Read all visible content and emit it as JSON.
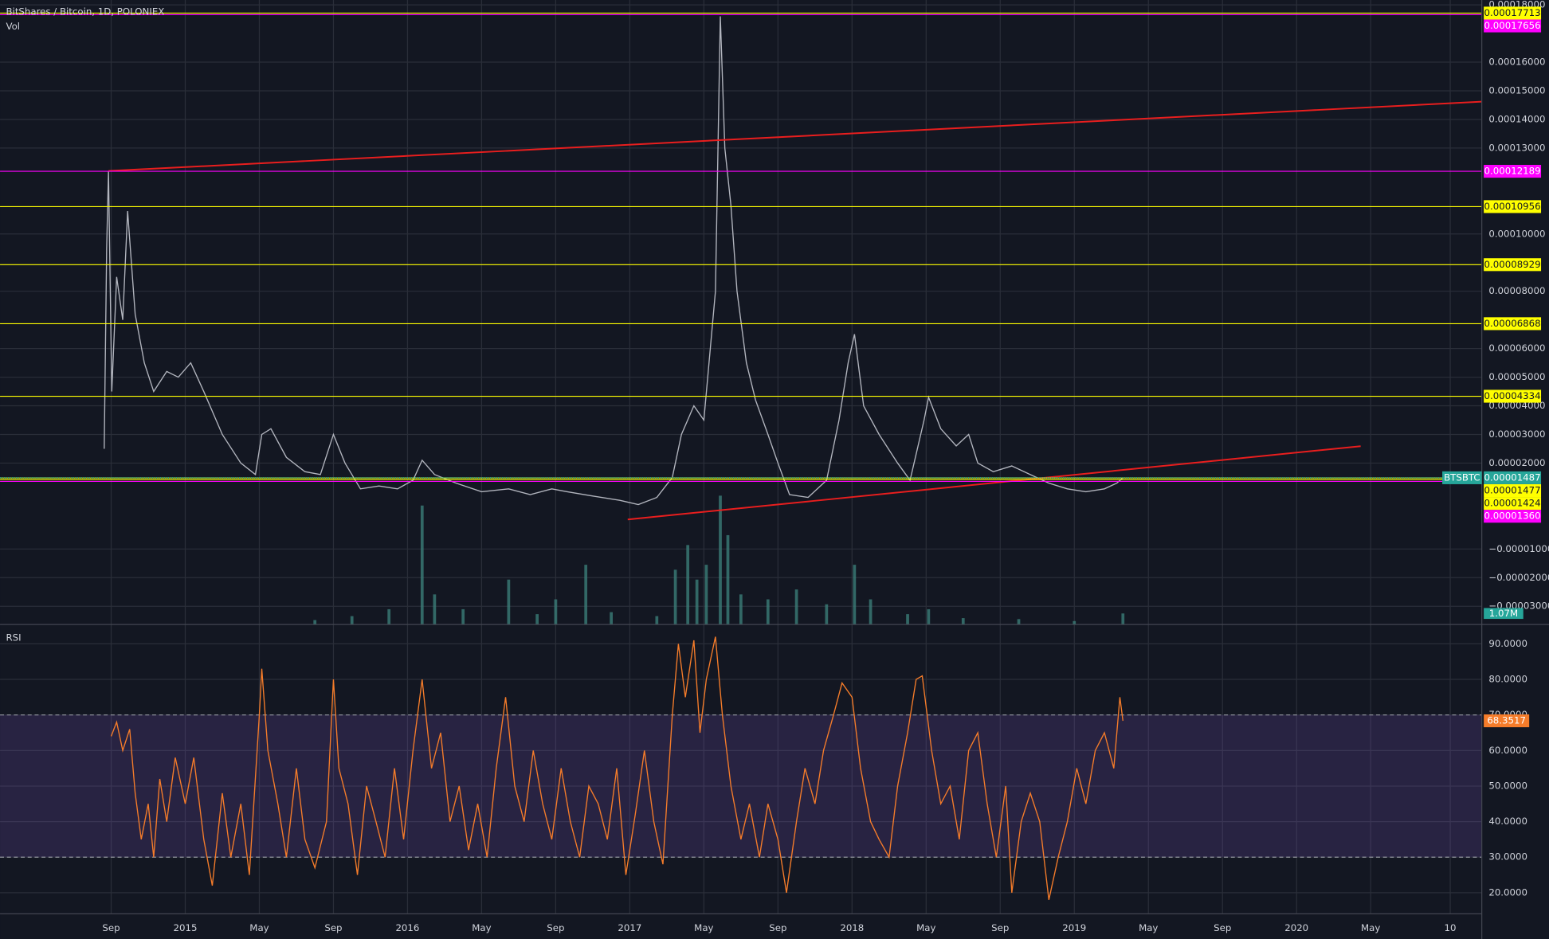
{
  "chart_data": [
    {
      "type": "line",
      "title": "BitShares / Bitcoin, 1D, POLONIEX",
      "xlim": [
        "2014-03",
        "2020-11"
      ],
      "xticks": [
        {
          "value": "2014-09",
          "label": "Sep"
        },
        {
          "value": "2015-01",
          "label": "2015"
        },
        {
          "value": "2015-05",
          "label": "May"
        },
        {
          "value": "2015-09",
          "label": "Sep"
        },
        {
          "value": "2016-01",
          "label": "2016"
        },
        {
          "value": "2016-05",
          "label": "May"
        },
        {
          "value": "2016-09",
          "label": "Sep"
        },
        {
          "value": "2017-01",
          "label": "2017"
        },
        {
          "value": "2017-05",
          "label": "May"
        },
        {
          "value": "2017-09",
          "label": "Sep"
        },
        {
          "value": "2018-01",
          "label": "2018"
        },
        {
          "value": "2018-05",
          "label": "May"
        },
        {
          "value": "2018-09",
          "label": "Sep"
        },
        {
          "value": "2019-01",
          "label": "2019"
        },
        {
          "value": "2019-05",
          "label": "May"
        },
        {
          "value": "2019-09",
          "label": "Sep"
        },
        {
          "value": "2020-01",
          "label": "2020"
        },
        {
          "value": "2020-05",
          "label": "May"
        },
        {
          "value": "2020-09-10",
          "label": "10"
        }
      ],
      "ylim": [
        -3.62e-05,
        0.0001817
      ],
      "yticks": [
        {
          "value": 0.00018,
          "label": "0.00018000"
        },
        {
          "value": 0.00016,
          "label": "0.00016000"
        },
        {
          "value": 0.00015,
          "label": "0.00015000"
        },
        {
          "value": 0.00014,
          "label": "0.00014000"
        },
        {
          "value": 0.00013,
          "label": "0.00013000"
        },
        {
          "value": 0.0001,
          "label": "0.00010000"
        },
        {
          "value": 8e-05,
          "label": "0.00008000"
        },
        {
          "value": 6e-05,
          "label": "0.00006000"
        },
        {
          "value": 5e-05,
          "label": "0.00005000"
        },
        {
          "value": 4e-05,
          "label": "0.00004000"
        },
        {
          "value": 3e-05,
          "label": "0.00003000"
        },
        {
          "value": 2e-05,
          "label": "0.00002000"
        },
        {
          "value": -1e-05,
          "label": "−0.00001000"
        },
        {
          "value": -2e-05,
          "label": "−0.00002000"
        },
        {
          "value": -3e-05,
          "label": "−0.00003000"
        }
      ],
      "grid": true,
      "x": [
        "2014-08-20",
        "2014-08-24",
        "2014-08-27",
        "2014-09-02",
        "2014-09-10",
        "2014-09-20",
        "2014-09-28",
        "2014-10-10",
        "2014-10-25",
        "2014-11-10",
        "2014-12-01",
        "2014-12-20",
        "2015-01-10",
        "2015-02-01",
        "2015-03-01",
        "2015-04-01",
        "2015-04-25",
        "2015-05-05",
        "2015-05-20",
        "2015-06-15",
        "2015-07-15",
        "2015-08-10",
        "2015-09-01",
        "2015-09-20",
        "2015-10-15",
        "2015-11-15",
        "2015-12-15",
        "2016-01-10",
        "2016-01-25",
        "2016-02-15",
        "2016-03-20",
        "2016-05-01",
        "2016-06-15",
        "2016-07-20",
        "2016-08-25",
        "2016-09-20",
        "2016-11-01",
        "2016-12-15",
        "2017-01-15",
        "2017-02-15",
        "2017-03-10",
        "2017-03-25",
        "2017-04-15",
        "2017-05-01",
        "2017-05-20",
        "2017-05-28",
        "2017-06-05",
        "2017-06-15",
        "2017-06-25",
        "2017-07-10",
        "2017-07-25",
        "2017-08-15",
        "2017-09-01",
        "2017-09-20",
        "2017-10-20",
        "2017-11-20",
        "2017-12-10",
        "2017-12-25",
        "2018-01-05",
        "2018-01-20",
        "2018-02-15",
        "2018-03-15",
        "2018-04-05",
        "2018-04-28",
        "2018-05-05",
        "2018-05-25",
        "2018-06-20",
        "2018-07-10",
        "2018-07-25",
        "2018-08-20",
        "2018-09-20",
        "2018-10-20",
        "2018-11-20",
        "2018-12-20",
        "2019-01-20",
        "2019-02-20",
        "2019-03-10",
        "2019-03-20"
      ],
      "series": [
        {
          "name": "BTSBTC",
          "color": "#b2b5be",
          "values": [
            2.5e-05,
            9.5e-05,
            0.000122,
            4.5e-05,
            8.5e-05,
            7e-05,
            0.000108,
            7.2e-05,
            5.5e-05,
            4.5e-05,
            5.2e-05,
            5e-05,
            5.5e-05,
            4.5e-05,
            3e-05,
            2e-05,
            1.6e-05,
            3e-05,
            3.2e-05,
            2.2e-05,
            1.7e-05,
            1.6e-05,
            3e-05,
            2e-05,
            1.1e-05,
            1.2e-05,
            1.1e-05,
            1.4e-05,
            2.1e-05,
            1.6e-05,
            1.3e-05,
            1e-05,
            1.1e-05,
            9e-06,
            1.1e-05,
            1e-05,
            8.5e-06,
            7e-06,
            5.5e-06,
            8e-06,
            1.5e-05,
            3e-05,
            4e-05,
            3.5e-05,
            8e-05,
            0.000176,
            0.00013,
            0.00011,
            8e-05,
            5.5e-05,
            4.2e-05,
            3e-05,
            2e-05,
            9e-06,
            8e-06,
            1.4e-05,
            3.5e-05,
            5.5e-05,
            6.5e-05,
            4e-05,
            3e-05,
            2e-05,
            1.4e-05,
            3.5e-05,
            4.3e-05,
            3.2e-05,
            2.6e-05,
            3e-05,
            2e-05,
            1.7e-05,
            1.9e-05,
            1.6e-05,
            1.3e-05,
            1.1e-05,
            1e-05,
            1.1e-05,
            1.3e-05,
            1.487e-05
          ]
        }
      ],
      "last_color": "#26a69a",
      "levels": [
        {
          "value": 0.00017713,
          "label": "0.00017713",
          "color": "#ffff00"
        },
        {
          "value": 0.00017656,
          "label": "0.00017656",
          "color": "#ff00ff"
        },
        {
          "value": 0.00012189,
          "label": "0.00012189",
          "color": "#ff00ff"
        },
        {
          "value": 0.00010956,
          "label": "0.00010956",
          "color": "#ffff00"
        },
        {
          "value": 8.929e-05,
          "label": "0.00008929",
          "color": "#ffff00"
        },
        {
          "value": 6.868e-05,
          "label": "0.00006868",
          "color": "#ffff00"
        },
        {
          "value": 4.334e-05,
          "label": "0.00004334",
          "color": "#ffff00"
        },
        {
          "value": 1.477e-05,
          "label": "0.00001477",
          "color": "#ffff00"
        },
        {
          "value": 1.424e-05,
          "label": "0.00001424",
          "color": "#ffff00"
        },
        {
          "value": 1.36e-05,
          "label": "0.00001360",
          "color": "#ff00ff"
        }
      ],
      "trendlines": [
        {
          "x": [
            "2014-08-27",
            "2020-11"
          ],
          "values": [
            0.000122,
            0.0001462
          ],
          "color": "#e91e1e"
        },
        {
          "x": [
            "2016-12-28",
            "2020-04-15"
          ],
          "values": [
            3e-07,
            2.59e-05
          ],
          "color": "#e91e1e"
        }
      ]
    },
    {
      "type": "bar",
      "title": "Vol",
      "color": "#3b7d78",
      "label_color": "#26a69a",
      "ylim": [
        0,
        20000000
      ],
      "x": [
        "2015-08-01",
        "2015-10-01",
        "2015-12-01",
        "2016-01-25",
        "2016-02-15",
        "2016-04-01",
        "2016-06-15",
        "2016-08-01",
        "2016-09-01",
        "2016-10-20",
        "2016-12-01",
        "2017-02-15",
        "2017-03-15",
        "2017-04-05",
        "2017-04-20",
        "2017-05-05",
        "2017-05-28",
        "2017-06-10",
        "2017-07-01",
        "2017-08-15",
        "2017-10-01",
        "2017-11-20",
        "2018-01-05",
        "2018-02-01",
        "2018-04-01",
        "2018-05-05",
        "2018-07-01",
        "2018-10-01",
        "2019-01-01",
        "2019-03-20"
      ],
      "values": [
        400000,
        800000,
        1500000,
        12000000,
        3000000,
        1500000,
        4500000,
        1000000,
        2500000,
        6000000,
        1200000,
        800000,
        5500000,
        8000000,
        4500000,
        6000000,
        13000000,
        9000000,
        3000000,
        2500000,
        3500000,
        2000000,
        6000000,
        2500000,
        1000000,
        1500000,
        600000,
        500000,
        300000,
        1070000
      ],
      "value_labels": [
        null,
        null,
        null,
        null,
        null,
        null,
        null,
        null,
        null,
        null,
        null,
        null,
        null,
        null,
        null,
        null,
        null,
        null,
        null,
        null,
        null,
        null,
        null,
        null,
        null,
        null,
        null,
        null,
        null,
        "1.07M"
      ]
    },
    {
      "type": "line",
      "title": "RSI",
      "color": "#f57c2a",
      "band": [
        30,
        70
      ],
      "band_color": "#7e57c2",
      "ylim": [
        14.2,
        95.3
      ],
      "yticks": [
        {
          "value": 90,
          "label": "90.0000"
        },
        {
          "value": 80,
          "label": "80.0000"
        },
        {
          "value": 70,
          "label": "70.0000"
        },
        {
          "value": 60,
          "label": "60.0000"
        },
        {
          "value": 50,
          "label": "50.0000"
        },
        {
          "value": 40,
          "label": "40.0000"
        },
        {
          "value": 30,
          "label": "30.0000"
        },
        {
          "value": 20,
          "label": "20.0000"
        }
      ],
      "x": [
        "2014-09-01",
        "2014-09-10",
        "2014-09-20",
        "2014-10-01",
        "2014-10-10",
        "2014-10-20",
        "2014-11-01",
        "2014-11-10",
        "2014-11-20",
        "2014-12-01",
        "2014-12-15",
        "2015-01-01",
        "2015-01-15",
        "2015-02-01",
        "2015-02-15",
        "2015-03-01",
        "2015-03-15",
        "2015-04-01",
        "2015-04-15",
        "2015-05-01",
        "2015-05-05",
        "2015-05-15",
        "2015-06-01",
        "2015-06-15",
        "2015-07-01",
        "2015-07-15",
        "2015-08-01",
        "2015-08-20",
        "2015-09-01",
        "2015-09-10",
        "2015-09-25",
        "2015-10-10",
        "2015-10-25",
        "2015-11-10",
        "2015-11-25",
        "2015-12-10",
        "2015-12-25",
        "2016-01-10",
        "2016-01-25",
        "2016-02-10",
        "2016-02-25",
        "2016-03-10",
        "2016-03-25",
        "2016-04-10",
        "2016-04-25",
        "2016-05-10",
        "2016-05-25",
        "2016-06-10",
        "2016-06-25",
        "2016-07-10",
        "2016-07-25",
        "2016-08-10",
        "2016-08-25",
        "2016-09-10",
        "2016-09-25",
        "2016-10-10",
        "2016-10-25",
        "2016-11-10",
        "2016-11-25",
        "2016-12-10",
        "2016-12-25",
        "2017-01-10",
        "2017-01-25",
        "2017-02-10",
        "2017-02-25",
        "2017-03-10",
        "2017-03-20",
        "2017-04-01",
        "2017-04-15",
        "2017-04-25",
        "2017-05-05",
        "2017-05-20",
        "2017-06-01",
        "2017-06-15",
        "2017-07-01",
        "2017-07-15",
        "2017-08-01",
        "2017-08-15",
        "2017-09-01",
        "2017-09-15",
        "2017-10-01",
        "2017-10-15",
        "2017-11-01",
        "2017-11-15",
        "2017-12-01",
        "2017-12-15",
        "2018-01-01",
        "2018-01-15",
        "2018-02-01",
        "2018-02-15",
        "2018-03-01",
        "2018-03-15",
        "2018-04-01",
        "2018-04-15",
        "2018-04-25",
        "2018-05-10",
        "2018-05-25",
        "2018-06-10",
        "2018-06-25",
        "2018-07-10",
        "2018-07-25",
        "2018-08-10",
        "2018-08-25",
        "2018-09-10",
        "2018-09-20",
        "2018-10-05",
        "2018-10-20",
        "2018-11-05",
        "2018-11-20",
        "2018-12-05",
        "2018-12-20",
        "2019-01-05",
        "2019-01-20",
        "2019-02-05",
        "2019-02-20",
        "2019-03-05",
        "2019-03-15",
        "2019-03-20"
      ],
      "values": [
        64,
        68,
        60,
        66,
        48,
        35,
        45,
        30,
        52,
        40,
        58,
        45,
        58,
        35,
        22,
        48,
        30,
        45,
        25,
        70,
        83,
        60,
        45,
        30,
        55,
        35,
        27,
        40,
        80,
        55,
        45,
        25,
        50,
        40,
        30,
        55,
        35,
        60,
        80,
        55,
        65,
        40,
        50,
        32,
        45,
        30,
        55,
        75,
        50,
        40,
        60,
        45,
        35,
        55,
        40,
        30,
        50,
        45,
        35,
        55,
        25,
        42,
        60,
        40,
        28,
        70,
        90,
        75,
        91,
        65,
        80,
        92,
        70,
        50,
        35,
        45,
        30,
        45,
        35,
        20,
        40,
        55,
        45,
        60,
        70,
        79,
        75,
        55,
        40,
        35,
        30,
        50,
        65,
        80,
        81,
        60,
        45,
        50,
        35,
        60,
        65,
        45,
        30,
        50,
        20,
        40,
        48,
        40,
        18,
        30,
        40,
        55,
        45,
        60,
        65,
        55,
        75,
        68.3517
      ]
    }
  ]
}
